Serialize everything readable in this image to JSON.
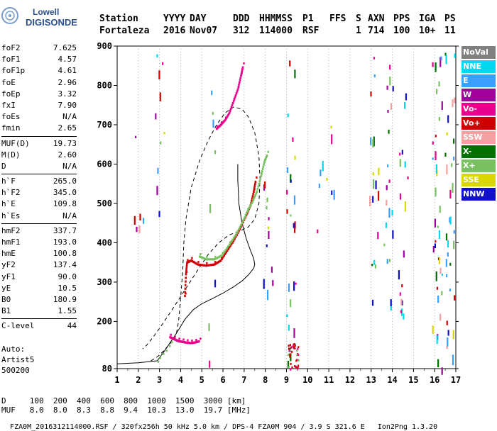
{
  "logo": {
    "line1": "Lowell",
    "line2": "DIGISONDE"
  },
  "header": {
    "labels": [
      "Station",
      "YYYY",
      "DAY",
      "DDD",
      "HHMMSS",
      "P1",
      "FFS",
      "S",
      "AXN",
      "PPS",
      "IGA",
      "PS"
    ],
    "values": [
      "Fortaleza",
      "2016",
      "Nov07",
      "312",
      "114000",
      "RSF",
      "",
      "1",
      "714",
      "100",
      "10+",
      "11"
    ]
  },
  "params": [
    [
      {
        "name": "foF2",
        "value": "7.625"
      },
      {
        "name": "foF1",
        "value": "4.57"
      },
      {
        "name": "foF1p",
        "value": "4.61"
      },
      {
        "name": "foE",
        "value": "2.96"
      },
      {
        "name": "foEp",
        "value": "3.32"
      },
      {
        "name": "fxI",
        "value": "7.90"
      },
      {
        "name": "foEs",
        "value": "N/A"
      },
      {
        "name": "fmin",
        "value": "2.65"
      }
    ],
    [
      {
        "name": "MUF(D)",
        "value": "19.73"
      },
      {
        "name": "M(D)",
        "value": "2.60"
      },
      {
        "name": "D",
        "value": "N/A"
      }
    ],
    [
      {
        "name": "h`F",
        "value": "265.0"
      },
      {
        "name": "h`F2",
        "value": "345.0"
      },
      {
        "name": "h`E",
        "value": "109.8"
      },
      {
        "name": "h`Es",
        "value": "N/A"
      }
    ],
    [
      {
        "name": "hmF2",
        "value": "337.7"
      },
      {
        "name": "hmF1",
        "value": "193.0"
      },
      {
        "name": "hmE",
        "value": "100.8"
      },
      {
        "name": "yF2",
        "value": "137.4"
      },
      {
        "name": "yF1",
        "value": "90.0"
      },
      {
        "name": "yE",
        "value": "10.5"
      },
      {
        "name": "B0",
        "value": "180.9"
      },
      {
        "name": "B1",
        "value": "1.55"
      }
    ],
    [
      {
        "name": "C-level",
        "value": "44"
      }
    ]
  ],
  "auto": {
    "line1": "Auto:",
    "line2": "Artist5",
    "line3": "500200"
  },
  "legend": [
    {
      "label": "NoVal",
      "color": "#808080"
    },
    {
      "label": "NNE",
      "color": "#00d8f0"
    },
    {
      "label": "E",
      "color": "#3aa0ff"
    },
    {
      "label": "W",
      "color": "#a0009c"
    },
    {
      "label": "Vo-",
      "color": "#e8008c"
    },
    {
      "label": "Vo+",
      "color": "#d00000"
    },
    {
      "label": "SSW",
      "color": "#f4a0a0"
    },
    {
      "label": "X-",
      "color": "#007000"
    },
    {
      "label": "X+",
      "color": "#78c060"
    },
    {
      "label": "SSE",
      "color": "#d8d800"
    },
    {
      "label": "NNW",
      "color": "#1010c8"
    }
  ],
  "muf_table": {
    "d_label": "D",
    "d_values": [
      "100",
      "200",
      "400",
      "600",
      "800",
      "1000",
      "1500",
      "3000"
    ],
    "d_unit": "[km]",
    "muf_label": "MUF",
    "muf_values": [
      "8.0",
      "8.0",
      "8.3",
      "8.8",
      "9.4",
      "10.3",
      "13.0",
      "19.7"
    ],
    "muf_unit": "[MHz]"
  },
  "footer": {
    "left": "FZA0M_2016312114000.RSF / 320fx256h 50 kHz 5.0 km / DPS-4 FZA0M 904 / 3.9 S 321.6 E",
    "right": "Ion2Png 1.3.20"
  },
  "chart_data": {
    "type": "scatter",
    "xlim": [
      1,
      17
    ],
    "ylim": [
      80,
      900
    ],
    "x_ticks": [
      1,
      2,
      3,
      4,
      5,
      6,
      7,
      8,
      9,
      10,
      11,
      12,
      13,
      14,
      15,
      16,
      17
    ],
    "y_ticks": [
      80,
      200,
      300,
      400,
      500,
      600,
      700,
      800,
      900
    ],
    "grid": "vertical",
    "legend_position": "right",
    "traces": [
      {
        "name": "O-trace",
        "color": "#d00000",
        "points": [
          [
            4.2,
            265
          ],
          [
            4.25,
            320
          ],
          [
            4.3,
            350
          ],
          [
            4.5,
            355
          ],
          [
            4.8,
            345
          ],
          [
            5.2,
            342
          ],
          [
            5.6,
            345
          ],
          [
            5.9,
            355
          ],
          [
            6.2,
            380
          ],
          [
            6.5,
            405
          ],
          [
            6.8,
            435
          ],
          [
            7.1,
            470
          ],
          [
            7.3,
            495
          ],
          [
            7.45,
            530
          ],
          [
            7.55,
            560
          ]
        ]
      },
      {
        "name": "X-trace",
        "color": "#78c060",
        "points": [
          [
            4.9,
            365
          ],
          [
            5.2,
            358
          ],
          [
            5.6,
            358
          ],
          [
            5.95,
            368
          ],
          [
            6.3,
            395
          ],
          [
            6.6,
            420
          ],
          [
            6.9,
            450
          ],
          [
            7.15,
            480
          ],
          [
            7.4,
            505
          ],
          [
            7.6,
            530
          ],
          [
            7.8,
            570
          ],
          [
            7.95,
            605
          ],
          [
            8.1,
            625
          ]
        ]
      },
      {
        "name": "E-trace",
        "color": "#e8008c",
        "points": [
          [
            3.5,
            160
          ],
          [
            3.7,
            155
          ],
          [
            3.9,
            150
          ],
          [
            4.1,
            148
          ],
          [
            4.3,
            146
          ],
          [
            4.5,
            145
          ],
          [
            4.7,
            147
          ],
          [
            4.9,
            150
          ]
        ]
      },
      {
        "name": "Upper-branch",
        "color": "#e8008c",
        "points": [
          [
            5.7,
            690
          ],
          [
            5.9,
            700
          ],
          [
            6.1,
            712
          ],
          [
            6.3,
            730
          ],
          [
            6.5,
            760
          ],
          [
            6.7,
            790
          ],
          [
            6.85,
            825
          ],
          [
            6.95,
            850
          ]
        ]
      }
    ],
    "profile": {
      "name": "Electron density profile",
      "color": "#000000",
      "points": [
        [
          1.0,
          92
        ],
        [
          2.0,
          95
        ],
        [
          2.9,
          100
        ],
        [
          3.3,
          130
        ],
        [
          3.8,
          170
        ],
        [
          4.2,
          205
        ],
        [
          4.6,
          230
        ],
        [
          5.0,
          245
        ],
        [
          5.5,
          258
        ],
        [
          6.0,
          272
        ],
        [
          6.5,
          288
        ],
        [
          6.9,
          303
        ],
        [
          7.2,
          318
        ],
        [
          7.45,
          335
        ],
        [
          7.5,
          345
        ],
        [
          7.45,
          360
        ],
        [
          7.3,
          380
        ],
        [
          7.1,
          410
        ],
        [
          6.9,
          450
        ],
        [
          6.75,
          500
        ],
        [
          6.7,
          560
        ],
        [
          6.7,
          600
        ]
      ]
    },
    "model": {
      "name": "Model profile",
      "color": "#000000",
      "style": "dashed",
      "points": [
        [
          2.6,
          100
        ],
        [
          2.9,
          110
        ],
        [
          3.2,
          125
        ],
        [
          3.6,
          150
        ],
        [
          3.8,
          170
        ],
        [
          3.9,
          200
        ],
        [
          4.0,
          260
        ],
        [
          4.1,
          330
        ],
        [
          4.15,
          400
        ],
        [
          4.25,
          460
        ],
        [
          4.5,
          540
        ],
        [
          4.9,
          610
        ],
        [
          5.3,
          660
        ],
        [
          5.7,
          700
        ],
        [
          6.1,
          730
        ],
        [
          6.5,
          745
        ],
        [
          6.9,
          740
        ],
        [
          7.2,
          720
        ],
        [
          7.5,
          680
        ],
        [
          7.7,
          620
        ],
        [
          7.75,
          560
        ],
        [
          7.7,
          500
        ],
        [
          7.5,
          460
        ],
        [
          7.2,
          440
        ],
        [
          6.8,
          430
        ],
        [
          6.3,
          420
        ],
        [
          5.8,
          400
        ],
        [
          5.3,
          370
        ],
        [
          4.8,
          330
        ],
        [
          4.2,
          280
        ],
        [
          3.6,
          230
        ],
        [
          3.1,
          190
        ],
        [
          2.7,
          160
        ],
        [
          2.4,
          140
        ],
        [
          2.2,
          130
        ]
      ]
    },
    "scatter_columns": [
      {
        "x": 8.1,
        "ymin": 220,
        "ymax": 720,
        "density": 12
      },
      {
        "x": 9.2,
        "ymin": 80,
        "ymax": 900,
        "density": 26
      },
      {
        "x": 13.1,
        "ymin": 220,
        "ymax": 900,
        "density": 18
      },
      {
        "x": 13.8,
        "ymin": 160,
        "ymax": 880,
        "density": 20
      },
      {
        "x": 14.5,
        "ymin": 220,
        "ymax": 880,
        "density": 18
      },
      {
        "x": 16.1,
        "ymin": 80,
        "ymax": 900,
        "density": 36
      },
      {
        "x": 16.7,
        "ymin": 80,
        "ymax": 900,
        "density": 32
      },
      {
        "x": 5.4,
        "ymin": 80,
        "ymax": 900,
        "density": 8
      },
      {
        "x": 3.0,
        "ymin": 80,
        "ymax": 900,
        "density": 10
      },
      {
        "x": 2.0,
        "ymin": 300,
        "ymax": 900,
        "density": 6
      },
      {
        "x": 11.0,
        "ymin": 200,
        "ymax": 900,
        "density": 5
      },
      {
        "x": 10.5,
        "ymin": 300,
        "ymax": 900,
        "density": 4
      }
    ],
    "red_cluster": {
      "x": 9.3,
      "ymin": 80,
      "ymax": 145
    }
  }
}
